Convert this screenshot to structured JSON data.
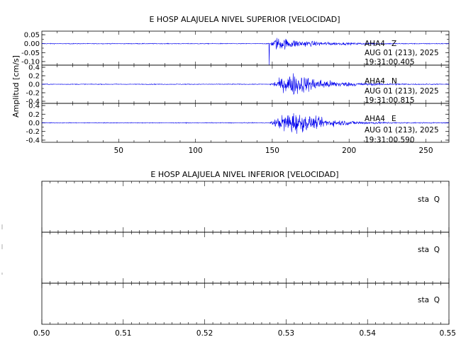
{
  "chart_data": [
    {
      "type": "line",
      "title": "E HOSP ALAJUELA NIVEL SUPERIOR [VELOCIDAD]",
      "xlabel": "",
      "ylabel": "Amplitud [cm/s]",
      "xlim": [
        0,
        265
      ],
      "xticks": [
        "50",
        "100",
        "150",
        "200",
        "250"
      ],
      "grid": false,
      "line_color": "#0000ee",
      "series": [
        {
          "name": "AHA4 Z",
          "station": "AHA4",
          "component": "Z",
          "date": "AUG 01 (213), 2025",
          "time": "19:31:00.405",
          "ylim": [
            -0.12,
            0.07
          ],
          "yticks": [
            "0.05",
            "0.00",
            "-0.05",
            "-0.10"
          ],
          "ytick_values": [
            0.05,
            0.0,
            -0.05,
            -0.1
          ],
          "onset_x": 148,
          "peak_x": 153,
          "peak_amp": 0.055,
          "tail_tau": 22,
          "noise": 0.002,
          "spike": {
            "x": 148,
            "value": -0.12
          }
        },
        {
          "name": "AHA4 N",
          "station": "AHA4",
          "component": "N",
          "date": "AUG 01 (213), 2025",
          "time": "19:31:00.815",
          "ylim": [
            -0.45,
            0.45
          ],
          "yticks": [
            "0.4",
            "0.2",
            "0.0",
            "-0.2",
            "-0.4"
          ],
          "ytick_values": [
            0.4,
            0.2,
            0.0,
            -0.2,
            -0.4
          ],
          "onset_x": 148,
          "peak_x": 164,
          "peak_amp": 0.42,
          "tail_tau": 20,
          "noise": 0.008
        },
        {
          "name": "AHA4 E",
          "station": "AHA4",
          "component": "E",
          "date": "AUG 01 (213), 2025",
          "time": "19:31:00.590",
          "ylim": [
            -0.45,
            0.45
          ],
          "yticks": [
            "0.4",
            "0.2",
            "0.0",
            "-0.2",
            "-0.4"
          ],
          "ytick_values": [
            0.4,
            0.2,
            0.0,
            -0.2,
            -0.4
          ],
          "onset_x": 148,
          "peak_x": 162,
          "peak_amp": 0.44,
          "tail_tau": 20,
          "noise": 0.008
        }
      ]
    },
    {
      "type": "line",
      "title": "E HOSP ALAJUELA NIVEL INFERIOR [VELOCIDAD]",
      "xlabel": "",
      "ylabel": "",
      "xlim": [
        0.5,
        0.55
      ],
      "xticks": [
        "0.50",
        "0.51",
        "0.52",
        "0.53",
        "0.54",
        "0.55"
      ],
      "grid": false,
      "series": [
        {
          "label": "sta  Q"
        },
        {
          "label": "sta  Q"
        },
        {
          "label": "sta  Q"
        }
      ]
    }
  ]
}
